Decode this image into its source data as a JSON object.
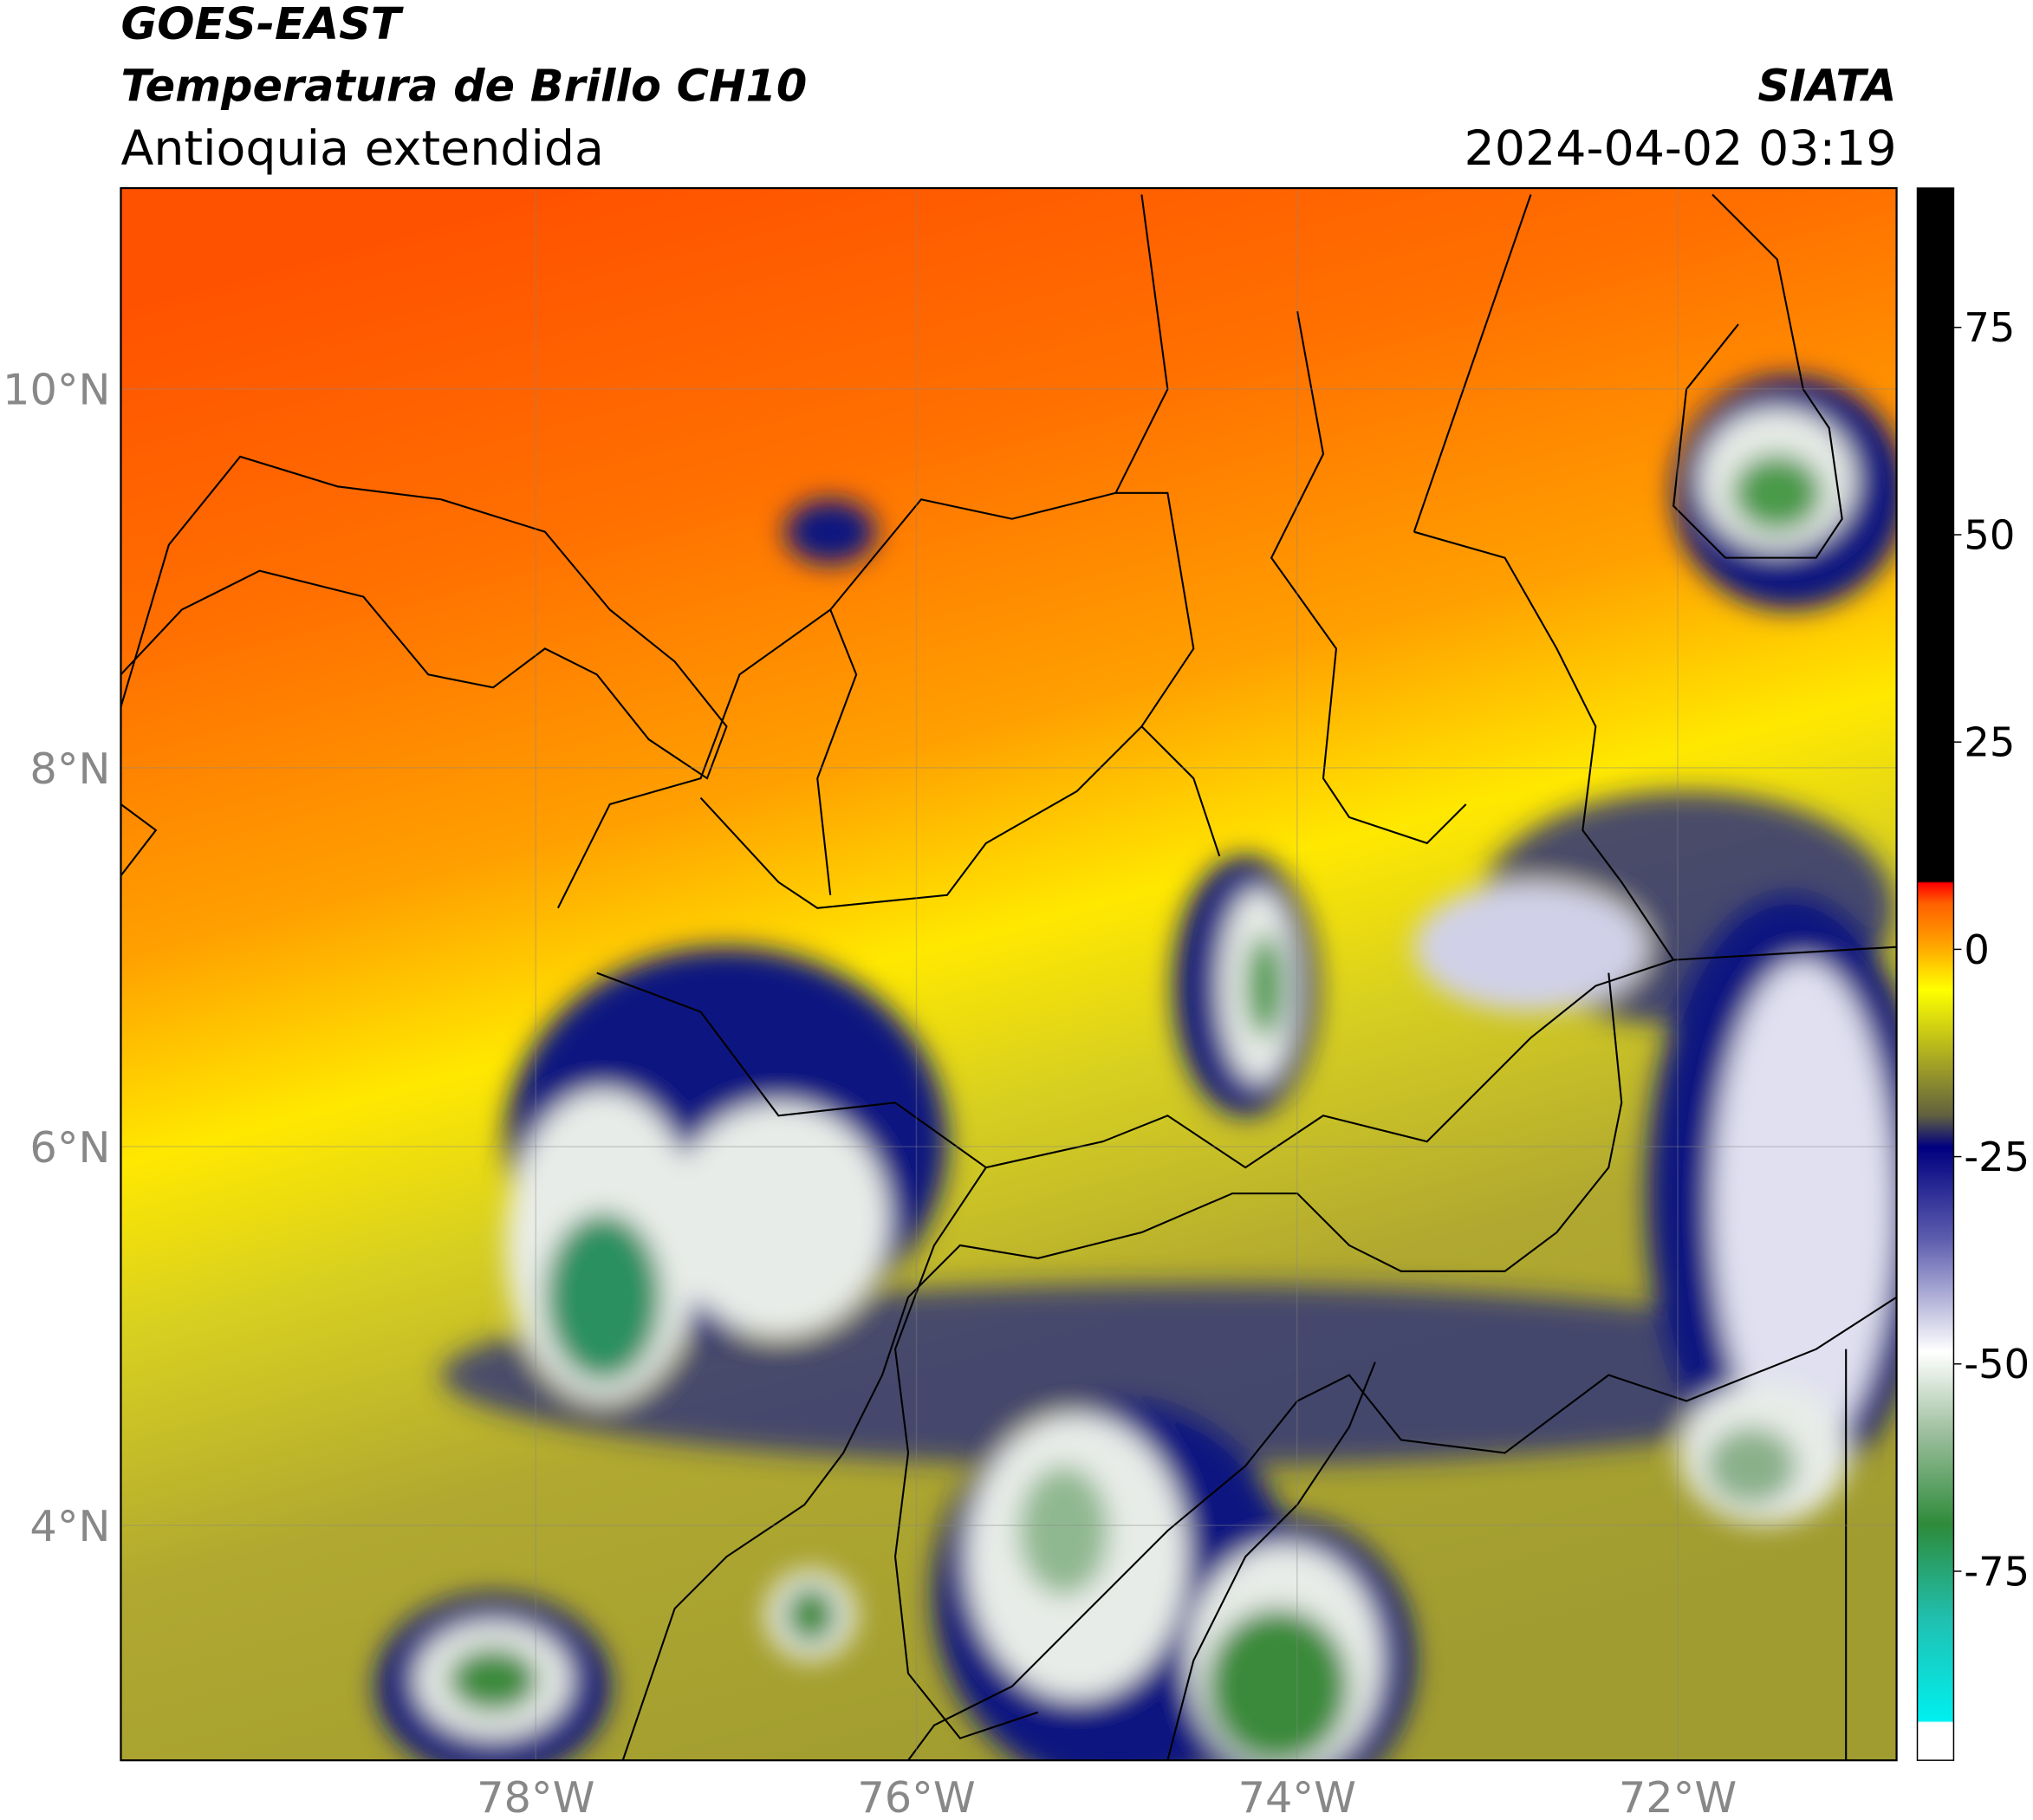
{
  "header": {
    "satellite": "GOES-EAST",
    "product": "Temperatura de Brillo CH10",
    "region": "Antioquia extendida",
    "source": "SIATA",
    "datetime": "2024-04-02 03:19"
  },
  "map": {
    "xlim": [
      -80.18,
      -70.85
    ],
    "ylim": [
      2.76,
      11.06
    ],
    "xticks": [
      {
        "value": -78,
        "label": "78°W"
      },
      {
        "value": -76,
        "label": "76°W"
      },
      {
        "value": -74,
        "label": "74°W"
      },
      {
        "value": -72,
        "label": "72°W"
      }
    ],
    "yticks": [
      {
        "value": 10,
        "label": "10°N"
      },
      {
        "value": 8,
        "label": "8°N"
      },
      {
        "value": 6,
        "label": "6°N"
      },
      {
        "value": 4,
        "label": "4°N"
      }
    ],
    "grid": true
  },
  "colorbar": {
    "clim": [
      -97.8,
      91.8
    ],
    "ticks": [
      75,
      50,
      25,
      0,
      -25,
      -50,
      -75
    ]
  }
}
